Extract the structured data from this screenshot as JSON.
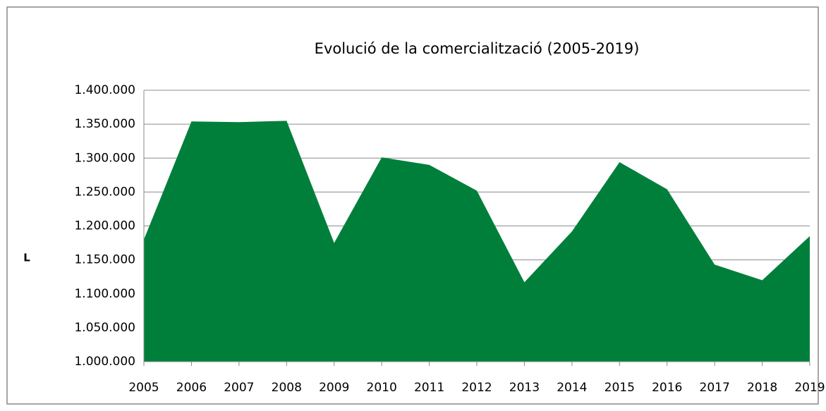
{
  "chart_data": {
    "type": "area",
    "title": "Evolució de la comercialització (2005-2019)",
    "y_label": "L",
    "categories": [
      "2005",
      "2006",
      "2007",
      "2008",
      "2009",
      "2010",
      "2011",
      "2012",
      "2013",
      "2014",
      "2015",
      "2016",
      "2017",
      "2018",
      "2019"
    ],
    "values": [
      1180000,
      1354000,
      1353000,
      1355000,
      1175000,
      1301000,
      1290000,
      1252000,
      1117000,
      1192000,
      1294000,
      1254000,
      1143000,
      1120000,
      1185000
    ],
    "color": "#007f3b",
    "ylim": [
      1000000,
      1400000
    ],
    "yticks": [
      {
        "value": 1000000,
        "label": "1.000.000"
      },
      {
        "value": 1050000,
        "label": "1.050.000"
      },
      {
        "value": 1100000,
        "label": "1.100.000"
      },
      {
        "value": 1150000,
        "label": "1.150.000"
      },
      {
        "value": 1200000,
        "label": "1.200.000"
      },
      {
        "value": 1250000,
        "label": "1.250.000"
      },
      {
        "value": 1300000,
        "label": "1.300.000"
      },
      {
        "value": 1350000,
        "label": "1.350.000"
      },
      {
        "value": 1400000,
        "label": "1.400.000"
      }
    ],
    "grid": true
  }
}
